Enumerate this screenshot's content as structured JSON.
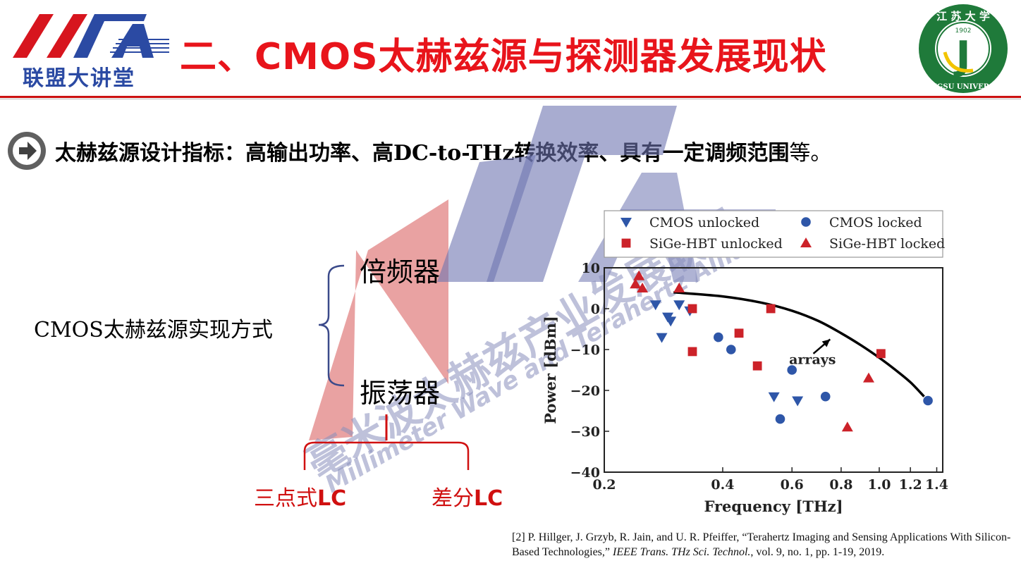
{
  "header": {
    "title": "二、CMOS太赫兹源与探测器发展现状",
    "left_logo_caption": "联盟大讲堂",
    "right_logo": {
      "top_text": "江 苏 大 学",
      "year": "1902",
      "bottom_text": "JIANGSU UNIVERSITY",
      "letter": "J"
    }
  },
  "bullet": {
    "icon": "arrow-circle-icon",
    "text": "太赫兹源设计指标：高输出功率、高DC-to-THz转换效率、具有一定调频范围",
    "suffix": "等。"
  },
  "tree": {
    "root": "CMOS太赫兹源实现方式",
    "child_1": "倍频器",
    "child_2": "振荡器",
    "sub_left_prefix": "三点式",
    "sub_left_bold": "LC",
    "sub_right_prefix": "差分",
    "sub_right_bold": "LC"
  },
  "watermark": {
    "cn_text": "毫米波太赫兹产业发展联盟",
    "en_text": "Millimeter Wave and Terahertz Alliance"
  },
  "colors": {
    "title_red": "#e8141b",
    "brand_blue": "#2b4aa3",
    "marker_blue": "#2e56a8",
    "marker_red": "#cc2229"
  },
  "chart_data": {
    "type": "scatter",
    "xlabel": "Frequency [THz]",
    "ylabel": "Power [dBm]",
    "xscale": "log",
    "xlim": [
      0.2,
      1.45
    ],
    "ylim": [
      -40,
      10
    ],
    "xticks": [
      0.2,
      0.4,
      0.6,
      0.8,
      1.0,
      1.2,
      1.4
    ],
    "xtick_labels": [
      "0.2",
      "0.4",
      "0.6",
      "0.8",
      "1.0",
      "1.2",
      "1.4"
    ],
    "yticks": [
      10,
      0,
      -10,
      -20,
      -30,
      -40
    ],
    "ytick_labels": [
      "10",
      "0",
      "−10",
      "−20",
      "−30",
      "−40"
    ],
    "legend_position": "top",
    "series": [
      {
        "name": "CMOS unlocked",
        "marker": "triangle-down",
        "color": "#2e56a8",
        "points": [
          [
            0.27,
            1
          ],
          [
            0.28,
            -7
          ],
          [
            0.29,
            -2
          ],
          [
            0.295,
            -3
          ],
          [
            0.31,
            1
          ],
          [
            0.33,
            -0.5
          ],
          [
            0.54,
            -21.5
          ],
          [
            0.62,
            -22.5
          ]
        ]
      },
      {
        "name": "CMOS locked",
        "marker": "circle",
        "color": "#2e56a8",
        "points": [
          [
            0.39,
            -7
          ],
          [
            0.42,
            -10
          ],
          [
            0.56,
            -27
          ],
          [
            0.6,
            -15
          ],
          [
            0.73,
            -21.5
          ],
          [
            1.33,
            -22.5
          ]
        ]
      },
      {
        "name": "SiGe-HBT unlocked",
        "marker": "square",
        "color": "#cc2229",
        "points": [
          [
            0.335,
            0
          ],
          [
            0.335,
            -10.5
          ],
          [
            0.44,
            -6
          ],
          [
            0.49,
            -14
          ],
          [
            0.53,
            0
          ],
          [
            1.01,
            -11
          ]
        ]
      },
      {
        "name": "SiGe-HBT locked",
        "marker": "triangle-up",
        "color": "#cc2229",
        "points": [
          [
            0.24,
            6
          ],
          [
            0.245,
            8
          ],
          [
            0.25,
            5
          ],
          [
            0.31,
            5
          ],
          [
            0.83,
            -29
          ],
          [
            0.94,
            -17
          ]
        ]
      }
    ],
    "trend_curve": {
      "label": "arrays",
      "points": [
        [
          0.3,
          4
        ],
        [
          0.4,
          3
        ],
        [
          0.5,
          1.5
        ],
        [
          0.6,
          -0.5
        ],
        [
          0.7,
          -3
        ],
        [
          0.8,
          -6
        ],
        [
          0.9,
          -9
        ],
        [
          1.0,
          -12
        ],
        [
          1.1,
          -15
        ],
        [
          1.2,
          -18
        ],
        [
          1.3,
          -21.5
        ]
      ]
    }
  },
  "reference": {
    "part_1": "[2] P. Hillger, J. Grzyb, R. Jain, and U. R. Pfeiffer, “Terahertz Imaging and Sensing Applications With Silicon-Based Technologies,” ",
    "journal": "IEEE Trans. THz Sci. Technol.",
    "part_2": ", vol.  9, no.  1, pp.  1-19, 2019."
  }
}
